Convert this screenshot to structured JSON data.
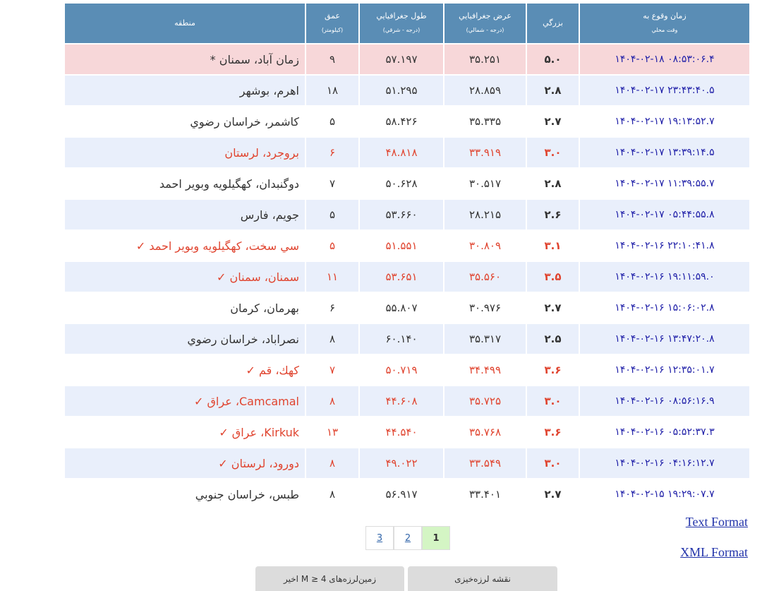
{
  "table": {
    "header": [
      [
        "زمان وقوع به",
        "وقت محلي"
      ],
      [
        "بزرگي"
      ],
      [
        "عرض جغرافيايي",
        "(درجه - شمالي)"
      ],
      [
        "طول جغرافيايي",
        "(درجه - شرقي)"
      ],
      [
        "عمق",
        "(كيلومتر)"
      ],
      [
        "منطقه"
      ]
    ],
    "rows": [
      {
        "cells": [
          "۱۴۰۴-۰۲-۱۸ ۰۸:۵۳:۰۶.۴",
          "۵.۰",
          "۳۵.۲۵۱",
          "۵۷.۱۹۷",
          "۹",
          "زمان آباد، سمنان *"
        ],
        "highlight": true,
        "text_color": "#333333"
      },
      {
        "cells": [
          "۱۴۰۴-۰۲-۱۷ ۲۳:۴۳:۴۰.۵",
          "۲.۸",
          "۲۸.۸۵۹",
          "۵۱.۲۹۵",
          "۱۸",
          "اهرم، بوشهر"
        ],
        "text_color": "#333333"
      },
      {
        "cells": [
          "۱۴۰۴-۰۲-۱۷ ۱۹:۱۳:۵۲.۷",
          "۲.۷",
          "۳۵.۳۳۵",
          "۵۸.۴۲۶",
          "۵",
          "كاشمر، خراسان رضوي"
        ],
        "text_color": "#333333"
      },
      {
        "cells": [
          "۱۴۰۴-۰۲-۱۷ ۱۳:۳۹:۱۴.۵",
          "۳.۰",
          "۳۳.۹۱۹",
          "۴۸.۸۱۸",
          "۶",
          "بروجرد، لرستان"
        ],
        "text_color": "#e0442f"
      },
      {
        "cells": [
          "۱۴۰۴-۰۲-۱۷ ۱۱:۳۹:۵۵.۷",
          "۲.۸",
          "۳۰.۵۱۷",
          "۵۰.۶۲۸",
          "۷",
          "دوگنبدان، كهگيلويه وبوير احمد"
        ],
        "text_color": "#333333"
      },
      {
        "cells": [
          "۱۴۰۴-۰۲-۱۷ ۰۵:۴۴:۵۵.۸",
          "۲.۶",
          "۲۸.۲۱۵",
          "۵۳.۶۶۰",
          "۵",
          "جويم، فارس"
        ],
        "text_color": "#333333"
      },
      {
        "cells": [
          "۱۴۰۴-۰۲-۱۶ ۲۲:۱۰:۴۱.۸",
          "۳.۱",
          "۳۰.۸۰۹",
          "۵۱.۵۵۱",
          "۵",
          "سي سخت، كهگيلويه وبوير احمد ✓"
        ],
        "text_color": "#e0442f"
      },
      {
        "cells": [
          "۱۴۰۴-۰۲-۱۶ ۱۹:۱۱:۵۹.۰",
          "۳.۵",
          "۳۵.۵۶۰",
          "۵۳.۶۵۱",
          "۱۱",
          "سمنان، سمنان ✓"
        ],
        "text_color": "#e0442f"
      },
      {
        "cells": [
          "۱۴۰۴-۰۲-۱۶ ۱۵:۰۶:۰۲.۸",
          "۲.۷",
          "۳۰.۹۷۶",
          "۵۵.۸۰۷",
          "۶",
          "بهرمان، كرمان"
        ],
        "text_color": "#333333"
      },
      {
        "cells": [
          "۱۴۰۴-۰۲-۱۶ ۱۳:۴۷:۲۰.۸",
          "۲.۵",
          "۳۵.۳۱۷",
          "۶۰.۱۴۰",
          "۸",
          "نصراباد، خراسان رضوي"
        ],
        "text_color": "#333333"
      },
      {
        "cells": [
          "۱۴۰۴-۰۲-۱۶ ۱۲:۳۵:۰۱.۷",
          "۳.۶",
          "۳۴.۴۹۹",
          "۵۰.۷۱۹",
          "۷",
          "كهك، قم ✓"
        ],
        "text_color": "#e0442f"
      },
      {
        "cells": [
          "۱۴۰۴-۰۲-۱۶ ۰۸:۵۶:۱۶.۹",
          "۳.۰",
          "۳۵.۷۲۵",
          "۴۴.۶۰۸",
          "۸",
          "Camcamal، عراق ✓"
        ],
        "text_color": "#e0442f"
      },
      {
        "cells": [
          "۱۴۰۴-۰۲-۱۶ ۰۵:۵۲:۳۷.۳",
          "۳.۶",
          "۳۵.۷۶۸",
          "۴۴.۵۴۰",
          "۱۳",
          "Kirkuk، عراق ✓"
        ],
        "text_color": "#e0442f"
      },
      {
        "cells": [
          "۱۴۰۴-۰۲-۱۶ ۰۴:۱۶:۱۲.۷",
          "۳.۰",
          "۳۳.۵۴۹",
          "۴۹.۰۲۲",
          "۸",
          "دورود، لرستان ✓"
        ],
        "text_color": "#e0442f"
      },
      {
        "cells": [
          "۱۴۰۴-۰۲-۱۵ ۱۹:۲۹:۰۷.۷",
          "۲.۷",
          "۳۳.۴۰۱",
          "۵۶.۹۱۷",
          "۸",
          "طبس، خراسان جنوبي"
        ],
        "text_color": "#333333"
      }
    ]
  },
  "pagination": {
    "pages": [
      "3",
      "2",
      "1"
    ],
    "current": "1"
  },
  "links": [
    "Text Format",
    "XML Format"
  ],
  "buttons": [
    "زمین‌لرزه‌های M ≥ 4 اخیر",
    "نقشه لرزه‌خیزی"
  ]
}
